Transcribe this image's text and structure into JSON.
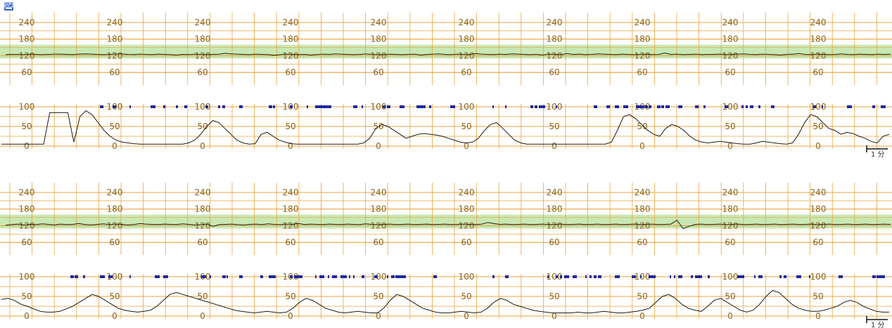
{
  "chart_data": {
    "type": "line",
    "colors": {
      "grid": "#e8a33c",
      "label": "#8a6520",
      "normal_band": "#c9e8b4",
      "trace": "#1a1a1a",
      "movement_mark": "#1c27a0"
    },
    "icon": "monitor-logo-icon",
    "panels": [
      {
        "fhr": {
          "tick_labels": [
            "240",
            "180",
            "120",
            "60"
          ],
          "ylim": [
            30,
            240
          ],
          "normal_band": [
            110,
            160
          ],
          "values": [
            124,
            125,
            125,
            124,
            126,
            125,
            124,
            125,
            126,
            126,
            125,
            124,
            126,
            127,
            126,
            125,
            124,
            125,
            126,
            127,
            125,
            124,
            126,
            125,
            124,
            126,
            125,
            124,
            123,
            125,
            124,
            126,
            125,
            124,
            125,
            126,
            129,
            127,
            126,
            125,
            124,
            126,
            125,
            124,
            122,
            124,
            126,
            125,
            124,
            125,
            123,
            124,
            126,
            125,
            127,
            126,
            125,
            124,
            125,
            127,
            125,
            124,
            124,
            126,
            125,
            124,
            125,
            126,
            123,
            125,
            126,
            127,
            125,
            124,
            126,
            125,
            124,
            128,
            126,
            125,
            124,
            126,
            125,
            127,
            126,
            125,
            124,
            125,
            123,
            126,
            125,
            124,
            128,
            125,
            126,
            124,
            125,
            127,
            126,
            125,
            124,
            126,
            125,
            124,
            125,
            126,
            124,
            125,
            130,
            125,
            126,
            124,
            125,
            126,
            124,
            125,
            125,
            126,
            124,
            125,
            126,
            127,
            125,
            124,
            126,
            125,
            124,
            123,
            125,
            126,
            128,
            125,
            124,
            126,
            125,
            124,
            125,
            127,
            125,
            124,
            126,
            125,
            124,
            126,
            125,
            126
          ]
        },
        "uc": {
          "tick_labels": [
            "100",
            "50",
            "0"
          ],
          "ylim": [
            0,
            100
          ],
          "values": [
            5,
            5,
            5,
            5,
            5,
            5,
            5,
            5,
            85,
            85,
            85,
            85,
            10,
            75,
            90,
            80,
            60,
            40,
            25,
            15,
            10,
            8,
            6,
            5,
            5,
            5,
            5,
            5,
            5,
            5,
            5,
            8,
            15,
            30,
            50,
            65,
            60,
            45,
            30,
            15,
            8,
            5,
            6,
            30,
            35,
            25,
            15,
            10,
            6,
            5,
            5,
            5,
            5,
            5,
            5,
            5,
            5,
            5,
            5,
            5,
            8,
            20,
            45,
            55,
            50,
            40,
            30,
            20,
            25,
            30,
            32,
            30,
            28,
            25,
            20,
            15,
            10,
            8,
            10,
            20,
            40,
            55,
            60,
            45,
            30,
            15,
            8,
            5,
            5,
            5,
            5,
            5,
            5,
            5,
            5,
            5,
            5,
            5,
            5,
            5,
            5,
            10,
            40,
            75,
            80,
            70,
            55,
            40,
            30,
            25,
            45,
            55,
            50,
            40,
            25,
            15,
            10,
            8,
            10,
            12,
            10,
            8,
            6,
            5,
            5,
            8,
            12,
            10,
            8,
            6,
            5,
            8,
            30,
            60,
            80,
            75,
            60,
            45,
            40,
            30,
            35,
            32,
            25,
            20,
            12,
            8,
            25,
            30
          ]
        },
        "scale_label": "1 分"
      },
      {
        "fhr": {
          "tick_labels": [
            "240",
            "180",
            "120",
            "60"
          ],
          "ylim": [
            30,
            240
          ],
          "normal_band": [
            110,
            160
          ],
          "values": [
            122,
            124,
            126,
            123,
            125,
            124,
            127,
            125,
            123,
            126,
            124,
            125,
            128,
            124,
            123,
            125,
            127,
            124,
            126,
            125,
            123,
            124,
            128,
            126,
            125,
            124,
            126,
            125,
            124,
            127,
            125,
            123,
            124,
            126,
            118,
            124,
            125,
            126,
            124,
            123,
            125,
            126,
            124,
            127,
            125,
            124,
            126,
            125,
            128,
            124,
            126,
            125,
            124,
            126,
            125,
            124,
            126,
            125,
            124,
            127,
            125,
            124,
            125,
            126,
            124,
            125,
            126,
            124,
            125,
            126,
            124,
            125,
            126,
            124,
            125,
            126,
            125,
            124,
            126,
            132,
            128,
            125,
            126,
            124,
            125,
            126,
            124,
            125,
            126,
            124,
            125,
            126,
            124,
            125,
            126,
            124,
            125,
            126,
            124,
            125,
            126,
            124,
            125,
            126,
            124,
            125,
            126,
            124,
            125,
            126,
            140,
            110,
            118,
            125,
            126,
            124,
            125,
            126,
            124,
            125,
            126,
            124,
            125,
            126,
            124,
            125,
            126,
            124,
            125,
            126,
            124,
            125,
            126,
            124,
            125,
            126,
            124,
            125,
            126,
            124,
            125,
            126,
            124,
            125,
            126,
            125
          ]
        },
        "uc": {
          "tick_labels": [
            "100",
            "50",
            "0"
          ],
          "ylim": [
            0,
            100
          ],
          "values": [
            42,
            45,
            40,
            30,
            25,
            18,
            12,
            10,
            10,
            12,
            18,
            25,
            35,
            45,
            55,
            50,
            40,
            30,
            20,
            15,
            12,
            10,
            12,
            15,
            25,
            40,
            55,
            60,
            55,
            50,
            45,
            40,
            35,
            30,
            25,
            20,
            15,
            12,
            10,
            8,
            10,
            12,
            10,
            8,
            10,
            20,
            35,
            45,
            40,
            30,
            20,
            15,
            10,
            8,
            10,
            12,
            10,
            8,
            8,
            20,
            40,
            55,
            50,
            40,
            30,
            20,
            15,
            10,
            8,
            8,
            10,
            12,
            10,
            8,
            10,
            20,
            35,
            45,
            40,
            30,
            25,
            20,
            15,
            12,
            10,
            8,
            8,
            8,
            8,
            10,
            8,
            8,
            10,
            12,
            10,
            8,
            8,
            10,
            12,
            15,
            20,
            35,
            50,
            55,
            45,
            30,
            20,
            15,
            12,
            25,
            40,
            45,
            35,
            25,
            15,
            10,
            15,
            30,
            50,
            65,
            60,
            45,
            30,
            20,
            15,
            12,
            12,
            15,
            20,
            25,
            35,
            40,
            35,
            25,
            18,
            12,
            10,
            10
          ]
        },
        "scale_label": "1 分"
      }
    ]
  }
}
